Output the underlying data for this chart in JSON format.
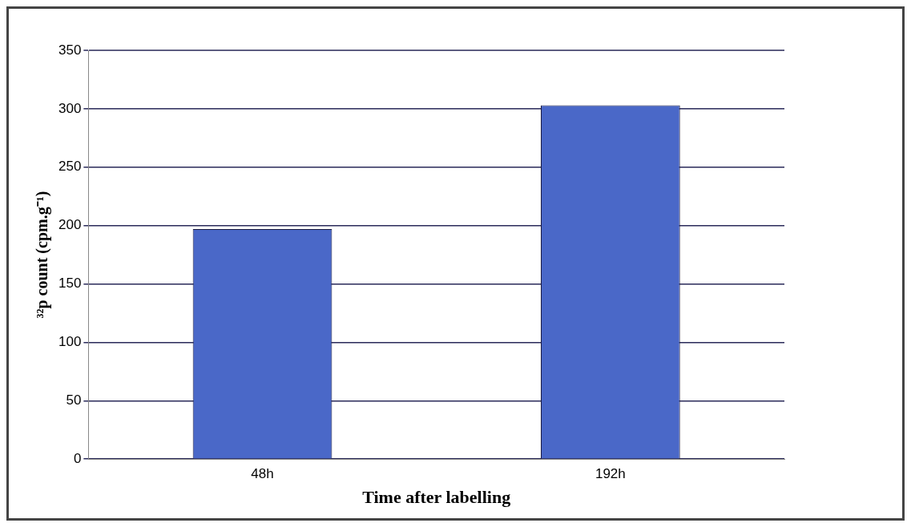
{
  "chart_data": {
    "type": "bar",
    "xlabel": "Time after labelling",
    "ylabel": "³²p count (cpm.g⁻¹)",
    "categories": [
      "48h",
      "192h"
    ],
    "values": [
      197,
      303
    ],
    "color": "#4a68c8",
    "ylim": [
      0,
      350
    ],
    "yticks": [
      0,
      50,
      100,
      150,
      200,
      250,
      300,
      350
    ],
    "grid": "y",
    "legend": false
  }
}
